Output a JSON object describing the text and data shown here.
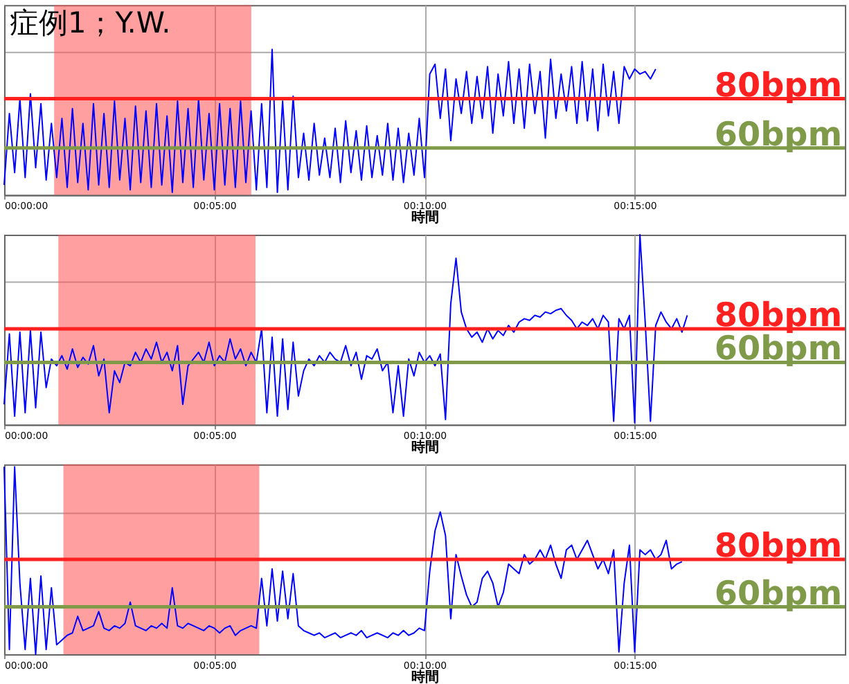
{
  "chart_data": [
    {
      "type": "line",
      "title": "症例1；Y.W.",
      "xlabel": "時間",
      "xlim": [
        0,
        20
      ],
      "ylim": [
        41,
        118
      ],
      "tick_labels": "x",
      "grid": true,
      "xticks": [
        {
          "value": 0,
          "label": "00:00:00"
        },
        {
          "value": 5,
          "label": "00:05:00"
        },
        {
          "value": 10,
          "label": "00:10:00"
        },
        {
          "value": 15,
          "label": "00:15:00"
        }
      ],
      "yticks": [
        {
          "value": 99,
          "label": null
        }
      ],
      "series": [
        {
          "color": "#0000ff",
          "x": [
            0,
            0.125,
            0.25,
            0.375,
            0.5,
            0.625,
            0.75,
            0.875,
            1,
            1.125,
            1.25,
            1.375,
            1.5,
            1.625,
            1.75,
            1.875,
            2,
            2.125,
            2.25,
            2.375,
            2.5,
            2.625,
            2.75,
            2.875,
            3,
            3.125,
            3.25,
            3.375,
            3.5,
            3.625,
            3.75,
            3.875,
            4,
            4.125,
            4.25,
            4.375,
            4.5,
            4.625,
            4.75,
            4.875,
            5,
            5.125,
            5.25,
            5.375,
            5.5,
            5.625,
            5.75,
            5.875,
            6,
            6.125,
            6.25,
            6.375,
            6.5,
            6.625,
            6.75,
            6.875,
            7,
            7.125,
            7.25,
            7.375,
            7.5,
            7.625,
            7.75,
            7.875,
            8,
            8.125,
            8.25,
            8.375,
            8.5,
            8.625,
            8.75,
            8.875,
            9,
            9.125,
            9.25,
            9.375,
            9.5,
            9.625,
            9.75,
            9.875,
            10,
            10.125,
            10.25,
            10.375,
            10.5,
            10.625,
            10.75,
            10.875,
            11,
            11.125,
            11.25,
            11.375,
            11.5,
            11.625,
            11.75,
            11.875,
            12,
            12.125,
            12.25,
            12.375,
            12.5,
            12.625,
            12.75,
            12.875,
            13,
            13.125,
            13.25,
            13.375,
            13.5,
            13.625,
            13.75,
            13.875,
            14,
            14.125,
            14.25,
            14.375,
            14.5,
            14.625,
            14.75,
            14.875,
            15,
            15.125,
            15.25,
            15.375,
            15.5
          ],
          "values": [
            45,
            74,
            50,
            80,
            48,
            82,
            52,
            78,
            47,
            70,
            48,
            72,
            44,
            76,
            46,
            70,
            43,
            78,
            45,
            74,
            44,
            79,
            47,
            72,
            43,
            77,
            46,
            75,
            44,
            78,
            45,
            73,
            42,
            79,
            46,
            76,
            44,
            80,
            47,
            74,
            43,
            78,
            45,
            76,
            44,
            79,
            46,
            75,
            43,
            78,
            44,
            100,
            42,
            79,
            43,
            81,
            48,
            66,
            47,
            70,
            49,
            64,
            48,
            68,
            46,
            71,
            50,
            67,
            47,
            69,
            48,
            65,
            49,
            70,
            47,
            68,
            46,
            66,
            49,
            72,
            48,
            90,
            94,
            72,
            92,
            63,
            88,
            74,
            91,
            70,
            89,
            72,
            93,
            66,
            90,
            73,
            95,
            70,
            92,
            68,
            94,
            74,
            91,
            64,
            96,
            72,
            90,
            75,
            93,
            70,
            95,
            71,
            92,
            67,
            94,
            73,
            91,
            70,
            93,
            88,
            92,
            90,
            91,
            88,
            92
          ]
        }
      ],
      "ref_lines": [
        {
          "axis": "y",
          "value": 80,
          "label": "80bpm",
          "color": "#ff2020"
        },
        {
          "axis": "y",
          "value": 60,
          "label": "60bpm",
          "color": "#7f9a48"
        }
      ],
      "bands": [
        {
          "axis": "x",
          "from": 1.19,
          "to": 5.88,
          "color": "#ff5050"
        }
      ]
    },
    {
      "type": "line",
      "xlabel": "時間",
      "xlim": [
        0,
        20
      ],
      "ylim": [
        23,
        136
      ],
      "tick_labels": "x",
      "grid": true,
      "xticks": [
        {
          "value": 0,
          "label": "00:00:00"
        },
        {
          "value": 5,
          "label": "00:05:00"
        },
        {
          "value": 10,
          "label": "00:10:00"
        },
        {
          "value": 15,
          "label": "00:15:00"
        }
      ],
      "yticks": [
        {
          "value": 108,
          "label": null
        }
      ],
      "series": [
        {
          "color": "#0000ff",
          "x": [
            0,
            0.125,
            0.25,
            0.375,
            0.5,
            0.625,
            0.75,
            0.875,
            1,
            1.125,
            1.25,
            1.375,
            1.5,
            1.625,
            1.75,
            1.875,
            2,
            2.125,
            2.25,
            2.375,
            2.5,
            2.625,
            2.75,
            2.875,
            3,
            3.125,
            3.25,
            3.375,
            3.5,
            3.625,
            3.75,
            3.875,
            4,
            4.125,
            4.25,
            4.375,
            4.5,
            4.625,
            4.75,
            4.875,
            5,
            5.125,
            5.25,
            5.375,
            5.5,
            5.625,
            5.75,
            5.875,
            6,
            6.125,
            6.25,
            6.375,
            6.5,
            6.625,
            6.75,
            6.875,
            7,
            7.125,
            7.25,
            7.375,
            7.5,
            7.625,
            7.75,
            7.875,
            8,
            8.125,
            8.25,
            8.375,
            8.5,
            8.625,
            8.75,
            8.875,
            9,
            9.125,
            9.25,
            9.375,
            9.5,
            9.625,
            9.75,
            9.875,
            10,
            10.125,
            10.25,
            10.375,
            10.5,
            10.625,
            10.75,
            10.875,
            11,
            11.125,
            11.25,
            11.375,
            11.5,
            11.625,
            11.75,
            11.875,
            12,
            12.125,
            12.25,
            12.375,
            12.5,
            12.625,
            12.75,
            12.875,
            13,
            13.125,
            13.25,
            13.375,
            13.5,
            13.625,
            13.75,
            13.875,
            14,
            14.125,
            14.25,
            14.375,
            14.5,
            14.625,
            14.75,
            14.875,
            15,
            15.125,
            15.25,
            15.375,
            15.5,
            15.625,
            15.75,
            15.875,
            16,
            16.125,
            16.25
          ],
          "values": [
            35,
            77,
            28,
            78,
            30,
            79,
            33,
            78,
            45,
            62,
            58,
            64,
            56,
            68,
            57,
            63,
            59,
            70,
            52,
            62,
            30,
            55,
            48,
            60,
            58,
            66,
            60,
            68,
            62,
            72,
            60,
            66,
            55,
            70,
            35,
            58,
            62,
            66,
            60,
            72,
            58,
            64,
            60,
            74,
            62,
            68,
            58,
            66,
            60,
            80,
            30,
            75,
            28,
            74,
            32,
            72,
            40,
            55,
            62,
            58,
            64,
            60,
            66,
            62,
            60,
            70,
            58,
            66,
            50,
            64,
            62,
            68,
            55,
            60,
            30,
            58,
            28,
            62,
            52,
            66,
            60,
            64,
            58,
            65,
            26,
            95,
            122,
            90,
            80,
            75,
            78,
            72,
            80,
            74,
            79,
            76,
            82,
            78,
            84,
            86,
            85,
            88,
            87,
            90,
            89,
            91,
            92,
            88,
            85,
            80,
            84,
            82,
            86,
            80,
            88,
            84,
            25,
            86,
            80,
            88,
            24,
            136,
            84,
            25,
            82,
            90,
            84,
            80,
            86,
            78,
            88
          ]
        }
      ],
      "ref_lines": [
        {
          "axis": "y",
          "value": 80,
          "label": "80bpm",
          "color": "#ff2020"
        },
        {
          "axis": "y",
          "value": 60,
          "label": "60bpm",
          "color": "#7f9a48"
        }
      ],
      "bands": [
        {
          "axis": "x",
          "from": 1.29,
          "to": 5.98,
          "color": "#ff5050"
        }
      ]
    },
    {
      "type": "line",
      "xlabel": "時間",
      "xlim": [
        0,
        20
      ],
      "ylim": [
        40,
        120
      ],
      "tick_labels": "x",
      "grid": true,
      "xticks": [
        {
          "value": 0,
          "label": "00:00:00"
        },
        {
          "value": 5,
          "label": "00:05:00"
        },
        {
          "value": 10,
          "label": "00:10:00"
        },
        {
          "value": 15,
          "label": "00:15:00"
        }
      ],
      "yticks": [
        {
          "value": 100,
          "label": null
        }
      ],
      "series": [
        {
          "color": "#0000ff",
          "x": [
            0,
            0.125,
            0.25,
            0.375,
            0.5,
            0.625,
            0.75,
            0.875,
            1,
            1.125,
            1.25,
            1.375,
            1.5,
            1.625,
            1.75,
            1.875,
            2,
            2.125,
            2.25,
            2.375,
            2.5,
            2.625,
            2.75,
            2.875,
            3,
            3.125,
            3.25,
            3.375,
            3.5,
            3.625,
            3.75,
            3.875,
            4,
            4.125,
            4.25,
            4.375,
            4.5,
            4.625,
            4.75,
            4.875,
            5,
            5.125,
            5.25,
            5.375,
            5.5,
            5.625,
            5.75,
            5.875,
            6,
            6.125,
            6.25,
            6.375,
            6.5,
            6.625,
            6.75,
            6.875,
            7,
            7.125,
            7.25,
            7.375,
            7.5,
            7.625,
            7.75,
            7.875,
            8,
            8.125,
            8.25,
            8.375,
            8.5,
            8.625,
            8.75,
            8.875,
            9,
            9.125,
            9.25,
            9.375,
            9.5,
            9.625,
            9.75,
            9.875,
            10,
            10.125,
            10.25,
            10.375,
            10.5,
            10.625,
            10.75,
            10.875,
            11,
            11.125,
            11.25,
            11.375,
            11.5,
            11.625,
            11.75,
            11.875,
            12,
            12.125,
            12.25,
            12.375,
            12.5,
            12.625,
            12.75,
            12.875,
            13,
            13.125,
            13.25,
            13.375,
            13.5,
            13.625,
            13.75,
            13.875,
            14,
            14.125,
            14.25,
            14.375,
            14.5,
            14.625,
            14.75,
            14.875,
            15,
            15.125,
            15.25,
            15.375,
            15.5,
            15.625,
            15.75,
            15.875,
            16,
            16.125
          ],
          "values": [
            119,
            42,
            119,
            70,
            42,
            72,
            40,
            73,
            42,
            68,
            44,
            46,
            48,
            49,
            56,
            50,
            51,
            52,
            58,
            51,
            50,
            52,
            51,
            53,
            62,
            52,
            51,
            50,
            52,
            51,
            53,
            51,
            68,
            52,
            51,
            53,
            52,
            51,
            50,
            52,
            51,
            49,
            51,
            52,
            48,
            50,
            51,
            52,
            51,
            72,
            52,
            76,
            54,
            75,
            55,
            74,
            52,
            50,
            49,
            48,
            49,
            47,
            48,
            49,
            47,
            48,
            49,
            48,
            50,
            47,
            48,
            49,
            48,
            47,
            49,
            48,
            50,
            48,
            49,
            51,
            50,
            75,
            92,
            100,
            90,
            55,
            82,
            73,
            65,
            60,
            62,
            72,
            75,
            70,
            60,
            66,
            78,
            76,
            74,
            82,
            78,
            80,
            84,
            80,
            86,
            78,
            72,
            84,
            86,
            80,
            84,
            88,
            82,
            76,
            80,
            74,
            84,
            41,
            70,
            86,
            41,
            84,
            82,
            84,
            80,
            82,
            88,
            76,
            78,
            79
          ]
        }
      ],
      "ref_lines": [
        {
          "axis": "y",
          "value": 80,
          "label": "80bpm",
          "color": "#ff2020"
        },
        {
          "axis": "y",
          "value": 60,
          "label": "60bpm",
          "color": "#7f9a48"
        }
      ],
      "bands": [
        {
          "axis": "x",
          "from": 1.41,
          "to": 6.07,
          "color": "#ff5050"
        }
      ]
    }
  ]
}
